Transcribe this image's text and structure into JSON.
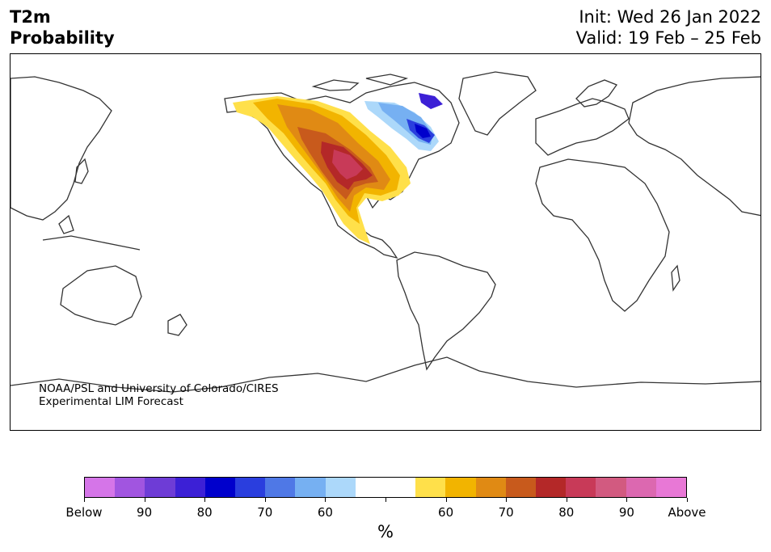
{
  "header": {
    "variable": "T2m",
    "type": "Probability",
    "init": "Init: Wed 26 Jan 2022",
    "valid": "Valid: 19 Feb – 25 Feb"
  },
  "credit": {
    "line1": "NOAA/PSL and University of Colorado/CIRES",
    "line2": "Experimental LIM Forecast"
  },
  "colorbar": {
    "colors": [
      "#d575e8",
      "#a155e0",
      "#6e3cd6",
      "#3c20d6",
      "#0000cc",
      "#2a3ede",
      "#4f78e6",
      "#76b0f2",
      "#acd8fa",
      "#ffffff",
      "#ffffff",
      "#ffe04a",
      "#f2b400",
      "#e08a14",
      "#c85a1c",
      "#b42828",
      "#c83a58",
      "#d25a80",
      "#dc68b0",
      "#e878d6"
    ],
    "labels": [
      "Below",
      "90",
      "80",
      "70",
      "60",
      "",
      "60",
      "70",
      "80",
      "90",
      "Above"
    ],
    "units": "%"
  }
}
